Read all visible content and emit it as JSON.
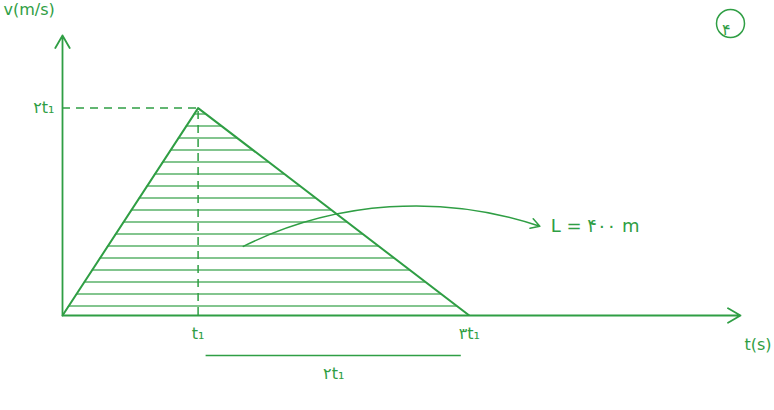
{
  "chart_data": {
    "type": "area",
    "x_label": "t(s)",
    "y_label": "v(m/s)",
    "x": [
      0,
      1,
      3
    ],
    "values": [
      0,
      2,
      0
    ],
    "color": "#2f9e44",
    "xlim": [
      0,
      5
    ],
    "ylim": [
      0,
      2.7
    ],
    "xticks": [
      {
        "value": 1,
        "label": "t₁"
      },
      {
        "value": 3,
        "label": "۳t₁"
      }
    ],
    "yticks": [
      {
        "value": 2,
        "label": "۲t₁"
      }
    ],
    "annotations": [
      {
        "text": "L = ۴۰۰ m"
      },
      {
        "text": "۲t₁",
        "x1": 1,
        "x2": 3
      }
    ],
    "problem_number": "۴",
    "grid": false
  }
}
